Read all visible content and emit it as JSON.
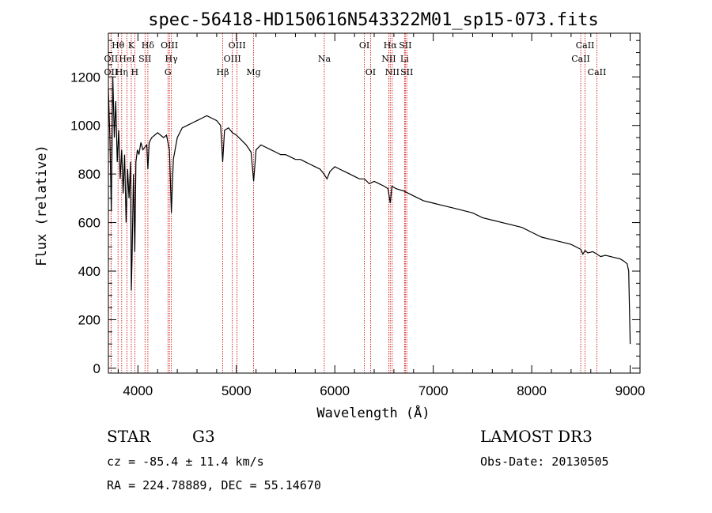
{
  "chart_data": {
    "type": "line",
    "title": "spec-56418-HD150616N543322M01_sp15-073.fits",
    "xlabel": "Wavelength (Å)",
    "ylabel": "Flux (relative)",
    "xlim": [
      3700,
      9100
    ],
    "ylim": [
      -20,
      1380
    ],
    "xticks": [
      4000,
      5000,
      6000,
      7000,
      8000,
      9000
    ],
    "yticks": [
      0,
      200,
      400,
      600,
      800,
      1000,
      1200
    ],
    "series": [
      {
        "name": "Flux",
        "x": [
          3700,
          3715,
          3730,
          3745,
          3760,
          3775,
          3790,
          3805,
          3820,
          3835,
          3850,
          3865,
          3880,
          3895,
          3910,
          3925,
          3933,
          3940,
          3955,
          3968,
          3980,
          3995,
          4010,
          4030,
          4050,
          4070,
          4090,
          4101,
          4115,
          4140,
          4170,
          4200,
          4230,
          4260,
          4290,
          4320,
          4340,
          4360,
          4400,
          4450,
          4500,
          4550,
          4600,
          4650,
          4700,
          4750,
          4800,
          4840,
          4861,
          4880,
          4920,
          4960,
          5000,
          5050,
          5100,
          5150,
          5175,
          5200,
          5250,
          5300,
          5350,
          5400,
          5450,
          5500,
          5550,
          5600,
          5650,
          5700,
          5750,
          5800,
          5850,
          5890,
          5920,
          5950,
          6000,
          6050,
          6100,
          6150,
          6200,
          6250,
          6300,
          6350,
          6400,
          6450,
          6500,
          6540,
          6563,
          6580,
          6620,
          6700,
          6800,
          6900,
          7000,
          7100,
          7200,
          7300,
          7400,
          7500,
          7600,
          7700,
          7800,
          7900,
          8000,
          8100,
          8200,
          8300,
          8400,
          8498,
          8520,
          8542,
          8570,
          8620,
          8662,
          8700,
          8750,
          8800,
          8850,
          8900,
          8940,
          8970,
          8985,
          9000
        ],
        "y": [
          1150,
          950,
          650,
          1200,
          950,
          1100,
          850,
          980,
          780,
          900,
          720,
          880,
          600,
          820,
          700,
          850,
          320,
          450,
          800,
          480,
          850,
          900,
          880,
          930,
          900,
          910,
          920,
          820,
          930,
          950,
          960,
          970,
          960,
          950,
          960,
          900,
          640,
          860,
          950,
          990,
          1000,
          1010,
          1020,
          1030,
          1040,
          1030,
          1020,
          1000,
          850,
          980,
          990,
          970,
          960,
          940,
          920,
          890,
          770,
          900,
          920,
          910,
          900,
          890,
          880,
          880,
          870,
          860,
          860,
          850,
          840,
          830,
          820,
          800,
          780,
          810,
          830,
          820,
          810,
          800,
          790,
          780,
          780,
          760,
          770,
          760,
          750,
          740,
          680,
          750,
          740,
          730,
          710,
          690,
          680,
          670,
          660,
          650,
          640,
          620,
          610,
          600,
          590,
          580,
          560,
          540,
          530,
          520,
          510,
          490,
          470,
          485,
          475,
          480,
          470,
          460,
          465,
          460,
          455,
          450,
          440,
          430,
          400,
          100
        ]
      }
    ],
    "spectral_lines": [
      {
        "label": "OII",
        "x": 3727,
        "row": 3
      },
      {
        "label": "OII",
        "x": 3727,
        "row": 2
      },
      {
        "label": "Hθ",
        "x": 3798,
        "row": 1
      },
      {
        "label": "Hη",
        "x": 3835,
        "row": 3
      },
      {
        "label": "HeI",
        "x": 3889,
        "row": 2
      },
      {
        "label": "K",
        "x": 3933,
        "row": 1
      },
      {
        "label": "H",
        "x": 3968,
        "row": 3
      },
      {
        "label": "SII",
        "x": 4072,
        "row": 2
      },
      {
        "label": "Hδ",
        "x": 4101,
        "row": 1
      },
      {
        "label": "OIII",
        "x": 4320,
        "row": 1
      },
      {
        "label": "Hγ",
        "x": 4340,
        "row": 2
      },
      {
        "label": "G",
        "x": 4305,
        "row": 3
      },
      {
        "label": "Hβ",
        "x": 4861,
        "row": 3
      },
      {
        "label": "OIII",
        "x": 4959,
        "row": 2
      },
      {
        "label": "OIII",
        "x": 5007,
        "row": 1
      },
      {
        "label": "Mg",
        "x": 5175,
        "row": 3
      },
      {
        "label": "Na",
        "x": 5893,
        "row": 2
      },
      {
        "label": "OI",
        "x": 6300,
        "row": 1
      },
      {
        "label": "OI",
        "x": 6363,
        "row": 3
      },
      {
        "label": "NII",
        "x": 6548,
        "row": 2
      },
      {
        "label": "Hα",
        "x": 6563,
        "row": 1
      },
      {
        "label": "NII",
        "x": 6583,
        "row": 3
      },
      {
        "label": "Li",
        "x": 6708,
        "row": 2
      },
      {
        "label": "SII",
        "x": 6716,
        "row": 1
      },
      {
        "label": "SII",
        "x": 6731,
        "row": 3
      },
      {
        "label": "CaII",
        "x": 8498,
        "row": 2
      },
      {
        "label": "CaII",
        "x": 8542,
        "row": 1
      },
      {
        "label": "CaII",
        "x": 8662,
        "row": 3
      }
    ]
  },
  "info": {
    "object_class": "STAR",
    "subclass": "G3",
    "survey": "LAMOST DR3",
    "redshift": "cz = -85.4 ± 11.4 km/s",
    "obs_date": "Obs-Date: 20130505",
    "coords": "RA = 224.78889, DEC =  55.14670"
  },
  "colors": {
    "line_marker": "#cc0000",
    "spectrum": "#000000",
    "background": "#ffffff"
  }
}
